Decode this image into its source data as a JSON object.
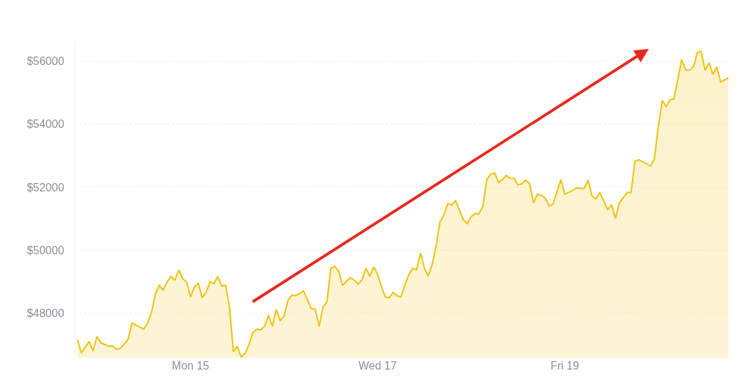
{
  "chart_data": {
    "type": "area",
    "color": "#f0c419",
    "x": [
      "--02-13T19:00",
      "--02-13T20:00",
      "--02-13T22:00",
      "--02-13T23:00",
      "--02-14T00:00",
      "--02-14T01:00",
      "--02-14T03:00",
      "--02-14T04:00",
      "--02-14T05:00",
      "--02-14T06:00",
      "--02-14T07:00",
      "--02-14T08:00",
      "--02-14T09:00",
      "--02-14T12:00",
      "--02-14T13:00",
      "--02-14T14:00",
      "--02-14T15:00",
      "--02-14T16:00",
      "--02-14T17:00",
      "--02-14T18:00",
      "--02-14T19:00",
      "--02-14T20:00",
      "--02-14T21:00",
      "--02-14T22:00",
      "--02-14T23:00",
      "--02-15T00:00",
      "--02-15T01:00",
      "--02-15T02:00",
      "--02-15T03:00",
      "--02-15T04:00",
      "--02-15T05:00",
      "--02-15T06:00",
      "--02-15T07:00",
      "--02-15T08:00",
      "--02-15T09:00",
      "--02-15T10:00",
      "--02-15T11:00",
      "--02-15T12:00",
      "--02-15T13:00",
      "--02-15T14:00",
      "--02-15T15:00",
      "--02-15T16:00",
      "--02-15T17:00",
      "--02-15T18:00",
      "--02-15T19:00",
      "--02-15T20:00",
      "--02-15T21:00",
      "--02-15T22:00",
      "--02-15T23:00",
      "--02-16T00:00",
      "--02-16T01:00",
      "--02-16T02:00",
      "--02-16T03:00",
      "--02-16T05:00",
      "--02-16T07:00",
      "--02-16T08:00",
      "--02-16T09:00",
      "--02-16T10:00",
      "--02-16T11:00",
      "--02-16T12:00",
      "--02-16T13:00",
      "--02-16T14:00",
      "--02-16T15:00",
      "--02-16T16:00",
      "--02-16T17:00",
      "--02-16T18:00",
      "--02-16T19:00",
      "--02-16T20:00",
      "--02-16T21:00",
      "--02-16T22:00",
      "--02-16T23:00",
      "--02-17T00:00",
      "--02-17T01:00",
      "--02-17T02:00",
      "--02-17T03:00",
      "--02-17T04:00",
      "--02-17T05:00",
      "--02-17T06:00",
      "--02-17T07:00",
      "--02-17T08:00",
      "--02-17T09:00",
      "--02-17T10:00",
      "--02-17T11:00",
      "--02-17T12:00",
      "--02-17T13:00",
      "--02-17T14:00",
      "--02-17T15:00",
      "--02-17T16:00",
      "--02-17T17:00",
      "--02-17T18:00",
      "--02-17T19:00",
      "--02-17T20:00",
      "--02-17T21:00",
      "--02-17T22:00",
      "--02-17T23:00",
      "--02-18T00:00",
      "--02-18T01:00",
      "--02-18T02:00",
      "--02-18T03:00",
      "--02-18T04:00",
      "--02-18T05:00",
      "--02-18T06:00",
      "--02-18T07:00",
      "--02-18T08:00",
      "--02-18T09:00",
      "--02-18T10:00",
      "--02-18T11:00",
      "--02-18T12:00",
      "--02-18T13:00",
      "--02-18T14:00",
      "--02-18T15:00",
      "--02-18T16:00",
      "--02-18T17:00",
      "--02-18T18:00",
      "--02-18T19:00",
      "--02-18T20:00",
      "--02-18T21:00",
      "--02-18T23:00",
      "--02-19T00:00",
      "--02-19T02:00",
      "--02-19T03:00",
      "--02-19T05:00",
      "--02-19T06:00",
      "--02-19T07:00",
      "--02-19T08:00",
      "--02-19T09:00",
      "--02-19T11:00",
      "--02-19T12:00",
      "--02-19T13:00",
      "--02-19T14:00",
      "--02-19T16:00",
      "--02-19T17:00",
      "--02-19T18:00",
      "--02-19T19:00",
      "--02-19T22:00",
      "--02-19T23:00",
      "--02-20T00:00",
      "--02-20T01:00",
      "--02-20T02:00",
      "--02-20T03:00",
      "--02-20T04:00",
      "--02-20T06:00",
      "--02-20T07:00",
      "--02-20T08:00",
      "--02-20T09:00",
      "--02-20T10:00",
      "--02-20T11:00",
      "--02-20T12:00",
      "--02-20T13:00",
      "--02-20T14:00",
      "--02-20T15:00",
      "--02-20T16:00",
      "--02-20T18:00"
    ],
    "values": [
      47160,
      46750,
      47110,
      46810,
      47270,
      47070,
      46960,
      46980,
      46860,
      46900,
      47030,
      47180,
      47700,
      47500,
      47700,
      48040,
      48630,
      48890,
      48740,
      49000,
      49170,
      49060,
      49380,
      49100,
      49000,
      48520,
      48840,
      48950,
      48500,
      48670,
      49000,
      48950,
      49170,
      48870,
      48890,
      48200,
      46790,
      46960,
      46620,
      46730,
      47010,
      47400,
      47500,
      47480,
      47590,
      47940,
      47590,
      48130,
      47780,
      47910,
      48410,
      48580,
      48560,
      48710,
      48150,
      48130,
      47590,
      48200,
      48370,
      49430,
      49490,
      49340,
      48890,
      49020,
      49130,
      49060,
      48930,
      49060,
      49430,
      49170,
      49470,
      49230,
      48840,
      48520,
      48500,
      48670,
      48560,
      48520,
      48910,
      49230,
      49430,
      49380,
      49920,
      49430,
      49190,
      49560,
      50140,
      50900,
      51110,
      51480,
      51440,
      51570,
      51270,
      50960,
      50850,
      51070,
      51160,
      51160,
      51400,
      52240,
      52410,
      52450,
      52150,
      52240,
      52370,
      52280,
      52280,
      52070,
      52110,
      52220,
      52110,
      51500,
      51780,
      51740,
      51650,
      51400,
      51460,
      52240,
      51780,
      51890,
      51980,
      51960,
      52220,
      51720,
      51630,
      51830,
      51290,
      51440,
      51010,
      51500,
      51830,
      51830,
      52820,
      52870,
      52670,
      52890,
      53920,
      54750,
      54550,
      54770,
      54790,
      56040,
      55720,
      55700,
      55810,
      56260,
      56300,
      55700,
      55940,
      55570,
      55810,
      55330,
      55460
    ],
    "xlim": [
      "--02-13T18:30",
      "--02-20T18:10"
    ],
    "xticks": [
      {
        "value": "--02-15",
        "label": "Mon 15"
      },
      {
        "value": "--02-17",
        "label": "Wed 17"
      },
      {
        "value": "--02-19",
        "label": "Fri 19"
      }
    ],
    "ylim": [
      46600,
      56600
    ],
    "yticks": [
      {
        "value": 48000,
        "label": "$48000"
      },
      {
        "value": 50000,
        "label": "$50000"
      },
      {
        "value": 52000,
        "label": "$52000"
      },
      {
        "value": 54000,
        "label": "$54000"
      },
      {
        "value": 56000,
        "label": "$56000"
      }
    ],
    "grid": "y",
    "legend": false
  }
}
